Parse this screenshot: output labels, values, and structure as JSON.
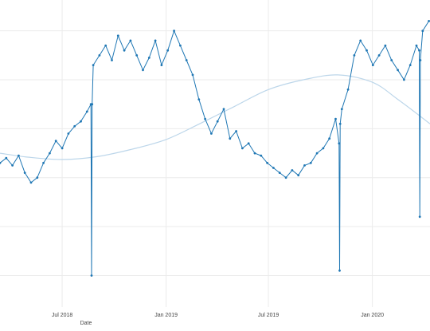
{
  "colors": {
    "series_line": "#1f77b4",
    "series_marker": "#1f77b4",
    "trend_line": "#bcd6ea",
    "grid": "#ebebeb",
    "text": "#444444"
  },
  "chart_data": {
    "type": "line",
    "xlabel": "Date",
    "ylabel": "",
    "x_ticks": [
      {
        "date": "2018-07-01",
        "label": "Jul 2018"
      },
      {
        "date": "2019-01-01",
        "label": "Jan 2019"
      },
      {
        "date": "2019-07-01",
        "label": "Jul 2019"
      },
      {
        "date": "2020-01-01",
        "label": "Jan 2020"
      }
    ],
    "xlim": [
      "2018-03-13",
      "2020-04-12"
    ],
    "grid": true,
    "y_gridlines": [
      0,
      1,
      2,
      3,
      4,
      5
    ],
    "ylim": [
      -0.4,
      5.5
    ],
    "legend": "none",
    "series": [
      {
        "style": "lines+markers",
        "x": [
          "2018-03-13",
          "2018-03-24",
          "2018-04-04",
          "2018-04-15",
          "2018-04-26",
          "2018-05-07",
          "2018-05-18",
          "2018-05-29",
          "2018-06-09",
          "2018-06-20",
          "2018-07-01",
          "2018-07-12",
          "2018-07-23",
          "2018-08-03",
          "2018-08-14",
          "2018-08-21",
          "2018-08-22",
          "2018-08-23",
          "2018-08-25",
          "2018-09-05",
          "2018-09-16",
          "2018-09-27",
          "2018-10-08",
          "2018-10-19",
          "2018-10-30",
          "2018-11-10",
          "2018-11-21",
          "2018-12-02",
          "2018-12-13",
          "2018-12-24",
          "2019-01-04",
          "2019-01-15",
          "2019-01-26",
          "2019-02-06",
          "2019-02-17",
          "2019-02-28",
          "2019-03-11",
          "2019-03-22",
          "2019-04-02",
          "2019-04-13",
          "2019-04-24",
          "2019-05-05",
          "2019-05-16",
          "2019-05-27",
          "2019-06-07",
          "2019-06-18",
          "2019-06-29",
          "2019-07-10",
          "2019-07-21",
          "2019-08-01",
          "2019-08-12",
          "2019-08-23",
          "2019-09-03",
          "2019-09-14",
          "2019-09-25",
          "2019-10-06",
          "2019-10-17",
          "2019-10-28",
          "2019-11-03",
          "2019-11-04",
          "2019-11-05",
          "2019-11-08",
          "2019-11-19",
          "2019-11-30",
          "2019-12-11",
          "2019-12-22",
          "2020-01-02",
          "2020-01-13",
          "2020-01-24",
          "2020-02-04",
          "2020-02-15",
          "2020-02-26",
          "2020-03-08",
          "2020-03-19",
          "2020-03-24",
          "2020-03-25",
          "2020-03-26",
          "2020-03-30",
          "2020-04-10"
        ],
        "y": [
          2.3,
          2.4,
          2.25,
          2.45,
          2.1,
          1.9,
          2.0,
          2.3,
          2.5,
          2.75,
          2.6,
          2.9,
          3.05,
          3.15,
          3.35,
          3.5,
          0.0,
          3.5,
          4.3,
          4.5,
          4.7,
          4.4,
          4.9,
          4.6,
          4.8,
          4.5,
          4.2,
          4.45,
          4.8,
          4.3,
          4.6,
          5.0,
          4.7,
          4.4,
          4.1,
          3.6,
          3.2,
          2.9,
          3.15,
          3.4,
          2.8,
          2.95,
          2.6,
          2.7,
          2.5,
          2.45,
          2.3,
          2.2,
          2.1,
          2.0,
          2.15,
          2.05,
          2.25,
          2.3,
          2.5,
          2.6,
          2.8,
          3.2,
          2.7,
          0.1,
          3.1,
          3.4,
          3.8,
          4.5,
          4.8,
          4.6,
          4.3,
          4.5,
          4.7,
          4.4,
          4.2,
          4.0,
          4.3,
          4.7,
          4.6,
          1.2,
          4.4,
          5.0,
          5.2
        ]
      },
      {
        "style": "smooth",
        "x": [
          "2018-03-13",
          "2018-05-01",
          "2018-07-01",
          "2018-09-01",
          "2018-11-01",
          "2019-01-01",
          "2019-03-01",
          "2019-05-01",
          "2019-07-01",
          "2019-09-01",
          "2019-11-01",
          "2020-01-01",
          "2020-02-15",
          "2020-04-12"
        ],
        "y": [
          2.5,
          2.42,
          2.37,
          2.43,
          2.58,
          2.78,
          3.1,
          3.45,
          3.8,
          4.0,
          4.1,
          3.95,
          3.6,
          3.1
        ]
      }
    ]
  }
}
